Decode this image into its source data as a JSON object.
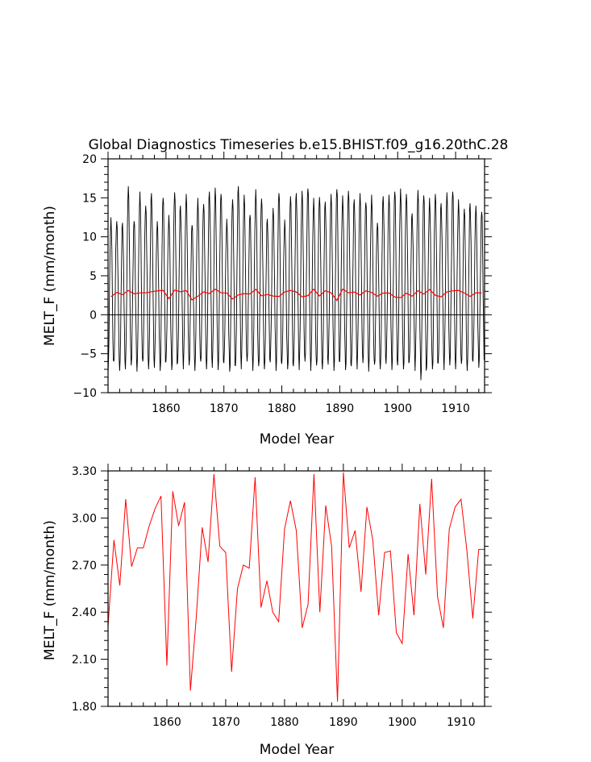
{
  "chart_data": [
    {
      "type": "line",
      "title": "Global Diagnostics Timeseries b.e15.BHIST.f09_g16.20thC.28",
      "xlabel": "Model Year",
      "ylabel": "MELT_F (mm/month)",
      "xlim": [
        1850,
        1915
      ],
      "ylim": [
        -10,
        20
      ],
      "xticks": [
        1860,
        1870,
        1880,
        1890,
        1900,
        1910
      ],
      "xtick_labels": [
        "1860",
        "1870",
        "1880",
        "1890",
        "1900",
        "1910"
      ],
      "yticks": [
        -10,
        -5,
        0,
        5,
        10,
        15,
        20
      ],
      "ytick_labels": [
        "−10",
        "−5",
        "0",
        "5",
        "10",
        "15",
        "20"
      ],
      "zero_line": true,
      "series": [
        {
          "style": "monthly",
          "color": "#000000",
          "annual_max": [
            12.5,
            12.0,
            11.8,
            16.5,
            12.0,
            15.8,
            14.0,
            15.6,
            12.0,
            15.0,
            12.8,
            15.7,
            14.0,
            15.5,
            11.5,
            15.0,
            14.2,
            15.8,
            16.3,
            15.5,
            12.3,
            14.8,
            16.5,
            15.4,
            12.8,
            16.1,
            14.9,
            12.3,
            13.7,
            15.6,
            12.2,
            15.2,
            15.6,
            15.9,
            16.2,
            15.0,
            15.1,
            14.5,
            15.5,
            16.1,
            15.3,
            15.9,
            14.8,
            15.6,
            14.4,
            15.4,
            11.8,
            15.2,
            15.4,
            15.8,
            16.2,
            15.5,
            13.0,
            16.0,
            15.3,
            15.0,
            15.5,
            14.3,
            15.7,
            15.8,
            14.8,
            13.6,
            14.3,
            14.0,
            13.2
          ],
          "annual_min": [
            -7.5,
            -6.0,
            -7.2,
            -7.0,
            -6.5,
            -7.3,
            -6.0,
            -7.0,
            -6.8,
            -7.2,
            -6.0,
            -7.1,
            -6.2,
            -7.0,
            -6.5,
            -7.2,
            -6.0,
            -7.0,
            -6.8,
            -7.1,
            -6.2,
            -7.3,
            -6.5,
            -7.0,
            -6.0,
            -7.2,
            -6.6,
            -7.0,
            -6.1,
            -7.2,
            -6.3,
            -7.0,
            -6.6,
            -7.1,
            -6.0,
            -7.2,
            -6.5,
            -7.0,
            -6.4,
            -7.2,
            -6.0,
            -7.1,
            -6.6,
            -7.0,
            -6.2,
            -7.3,
            -6.4,
            -7.0,
            -6.3,
            -7.1,
            -6.5,
            -7.0,
            -6.0,
            -7.2,
            -8.4,
            -6.8,
            -7.0,
            -6.2,
            -7.1,
            -6.5,
            -7.0,
            -6.3,
            -7.2,
            -6.0,
            -6.8
          ]
        },
        {
          "style": "annual",
          "color": "#ff0000",
          "x": [
            1850,
            1851,
            1852,
            1853,
            1854,
            1855,
            1856,
            1857,
            1858,
            1859,
            1860,
            1861,
            1862,
            1863,
            1864,
            1865,
            1866,
            1867,
            1868,
            1869,
            1870,
            1871,
            1872,
            1873,
            1874,
            1875,
            1876,
            1877,
            1878,
            1879,
            1880,
            1881,
            1882,
            1883,
            1884,
            1885,
            1886,
            1887,
            1888,
            1889,
            1890,
            1891,
            1892,
            1893,
            1894,
            1895,
            1896,
            1897,
            1898,
            1899,
            1900,
            1901,
            1902,
            1903,
            1904,
            1905,
            1906,
            1907,
            1908,
            1909,
            1910,
            1911,
            1912,
            1913,
            1914
          ],
          "values": [
            2.31,
            2.86,
            2.57,
            3.12,
            2.69,
            2.81,
            2.81,
            2.95,
            3.06,
            3.14,
            2.06,
            3.17,
            2.95,
            3.1,
            1.9,
            2.37,
            2.94,
            2.72,
            3.28,
            2.82,
            2.78,
            2.02,
            2.55,
            2.7,
            2.68,
            3.26,
            2.43,
            2.6,
            2.4,
            2.34,
            2.93,
            3.11,
            2.92,
            2.3,
            2.45,
            3.28,
            2.4,
            3.08,
            2.82,
            1.83,
            3.29,
            2.81,
            2.92,
            2.53,
            3.07,
            2.86,
            2.38,
            2.78,
            2.79,
            2.27,
            2.2,
            2.77,
            2.38,
            3.09,
            2.64,
            3.25,
            2.5,
            2.3,
            2.93,
            3.07,
            3.12,
            2.79,
            2.36,
            2.8,
            2.8
          ]
        }
      ]
    },
    {
      "type": "line",
      "xlabel": "Model Year",
      "ylabel": "MELT_F (mm/month)",
      "xlim": [
        1850,
        1914
      ],
      "ylim": [
        1.8,
        3.3
      ],
      "xticks": [
        1860,
        1870,
        1880,
        1890,
        1900,
        1910
      ],
      "xtick_labels": [
        "1860",
        "1870",
        "1880",
        "1890",
        "1900",
        "1910"
      ],
      "yticks": [
        1.8,
        2.1,
        2.4,
        2.7,
        3.0,
        3.3
      ],
      "ytick_labels": [
        "1.80",
        "2.10",
        "2.40",
        "2.70",
        "3.00",
        "3.30"
      ],
      "series": [
        {
          "color": "#ff0000",
          "x": [
            1850,
            1851,
            1852,
            1853,
            1854,
            1855,
            1856,
            1857,
            1858,
            1859,
            1860,
            1861,
            1862,
            1863,
            1864,
            1865,
            1866,
            1867,
            1868,
            1869,
            1870,
            1871,
            1872,
            1873,
            1874,
            1875,
            1876,
            1877,
            1878,
            1879,
            1880,
            1881,
            1882,
            1883,
            1884,
            1885,
            1886,
            1887,
            1888,
            1889,
            1890,
            1891,
            1892,
            1893,
            1894,
            1895,
            1896,
            1897,
            1898,
            1899,
            1900,
            1901,
            1902,
            1903,
            1904,
            1905,
            1906,
            1907,
            1908,
            1909,
            1910,
            1911,
            1912,
            1913,
            1914
          ],
          "values": [
            2.31,
            2.86,
            2.57,
            3.12,
            2.69,
            2.81,
            2.81,
            2.95,
            3.06,
            3.14,
            2.06,
            3.17,
            2.95,
            3.1,
            1.9,
            2.37,
            2.94,
            2.72,
            3.28,
            2.82,
            2.78,
            2.02,
            2.55,
            2.7,
            2.68,
            3.26,
            2.43,
            2.6,
            2.4,
            2.34,
            2.93,
            3.11,
            2.92,
            2.3,
            2.45,
            3.28,
            2.4,
            3.08,
            2.82,
            1.83,
            3.29,
            2.81,
            2.92,
            2.53,
            3.07,
            2.86,
            2.38,
            2.78,
            2.79,
            2.27,
            2.2,
            2.77,
            2.38,
            3.09,
            2.64,
            3.25,
            2.5,
            2.3,
            2.93,
            3.07,
            3.12,
            2.79,
            2.36,
            2.8,
            2.8
          ]
        }
      ]
    }
  ]
}
